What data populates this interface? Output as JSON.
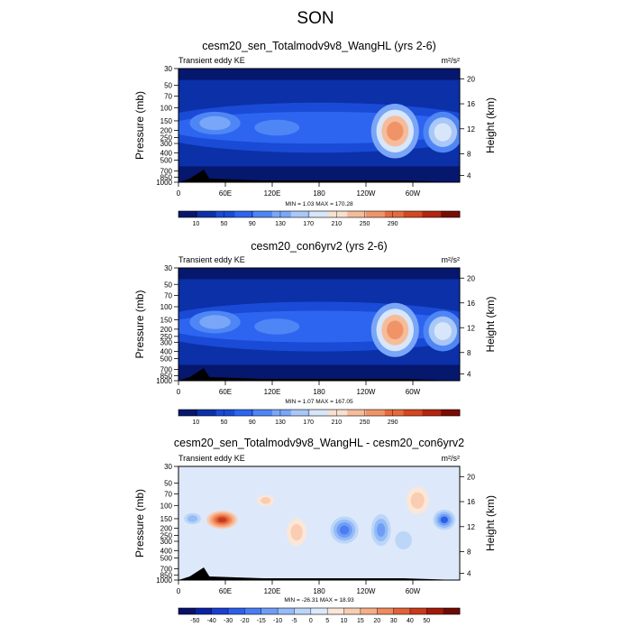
{
  "main_title": "SON",
  "chart_data": [
    {
      "type": "heatmap",
      "title": "cesm20_sen_Totalmodv9v8_WangHL (yrs 2-6)",
      "subtitle_left": "Transient eddy KE",
      "units": "m²/s²",
      "ylabel": "Pressure (mb)",
      "ylabel_right": "Height (km)",
      "yticks": [
        "30",
        "50",
        "70",
        "100",
        "150",
        "200",
        "250",
        "300",
        "400",
        "500",
        "700",
        "850",
        "1000"
      ],
      "yticks_right": [
        "20",
        "16",
        "12",
        "8",
        "4"
      ],
      "xticks": [
        "0",
        "60E",
        "120E",
        "180",
        "120W",
        "60W"
      ],
      "stats": "MIN =   1.03  MAX = 170.28",
      "colorbar_labels": [
        "10",
        "50",
        "90",
        "130",
        "170",
        "210",
        "250",
        "290"
      ],
      "colorbar_colors": [
        "#06176e",
        "#0b30a8",
        "#1a4bd6",
        "#2e65f0",
        "#4f86f5",
        "#7aa6f7",
        "#a9c7f7",
        "#d7e6f9",
        "#f7e0cf",
        "#f6bc9a",
        "#f09467",
        "#e56b3d",
        "#d34721",
        "#b3260f",
        "#7a0d05"
      ],
      "peak_max": 170.28,
      "peak_min": 1.03
    },
    {
      "type": "heatmap",
      "title": "cesm20_con6yrv2 (yrs 2-6)",
      "subtitle_left": "Transient eddy KE",
      "units": "m²/s²",
      "ylabel": "Pressure (mb)",
      "ylabel_right": "Height (km)",
      "yticks": [
        "30",
        "50",
        "70",
        "100",
        "150",
        "200",
        "250",
        "300",
        "400",
        "500",
        "700",
        "850",
        "1000"
      ],
      "yticks_right": [
        "20",
        "16",
        "12",
        "8",
        "4"
      ],
      "xticks": [
        "0",
        "60E",
        "120E",
        "180",
        "120W",
        "60W"
      ],
      "stats": "MIN =   1.07  MAX = 167.05",
      "colorbar_labels": [
        "10",
        "50",
        "90",
        "130",
        "170",
        "210",
        "250",
        "290"
      ],
      "colorbar_colors": [
        "#06176e",
        "#0b30a8",
        "#1a4bd6",
        "#2e65f0",
        "#4f86f5",
        "#7aa6f7",
        "#a9c7f7",
        "#d7e6f9",
        "#f7e0cf",
        "#f6bc9a",
        "#f09467",
        "#e56b3d",
        "#d34721",
        "#b3260f",
        "#7a0d05"
      ],
      "peak_max": 167.05,
      "peak_min": 1.07
    },
    {
      "type": "heatmap",
      "title": "cesm20_sen_Totalmodv9v8_WangHL - cesm20_con6yrv2",
      "subtitle_left": "Transient eddy KE",
      "units": "m²/s²",
      "ylabel": "Pressure (mb)",
      "ylabel_right": "Height (km)",
      "yticks": [
        "30",
        "50",
        "70",
        "100",
        "150",
        "200",
        "250",
        "300",
        "400",
        "500",
        "700",
        "850",
        "1000"
      ],
      "yticks_right": [
        "20",
        "16",
        "12",
        "8",
        "4"
      ],
      "xticks": [
        "0",
        "60E",
        "120E",
        "180",
        "120W",
        "60W"
      ],
      "stats": "MIN = -26.31  MAX =  18.93",
      "colorbar_labels": [
        "-50",
        "-40",
        "-30",
        "-20",
        "-15",
        "-10",
        "-5",
        "0",
        "5",
        "10",
        "15",
        "20",
        "30",
        "40",
        "50"
      ],
      "colorbar_colors": [
        "#08106a",
        "#0a22a0",
        "#1a3fd0",
        "#2d5ee8",
        "#4a7df2",
        "#6f9df6",
        "#95bcf7",
        "#bcd6f8",
        "#dde9fa",
        "#fbe6d8",
        "#f8cdb2",
        "#f5ae88",
        "#ee8a5e",
        "#e0613a",
        "#c9391c",
        "#a01a0a",
        "#6e0a04"
      ],
      "peak_max": 18.93,
      "peak_min": -26.31
    }
  ]
}
